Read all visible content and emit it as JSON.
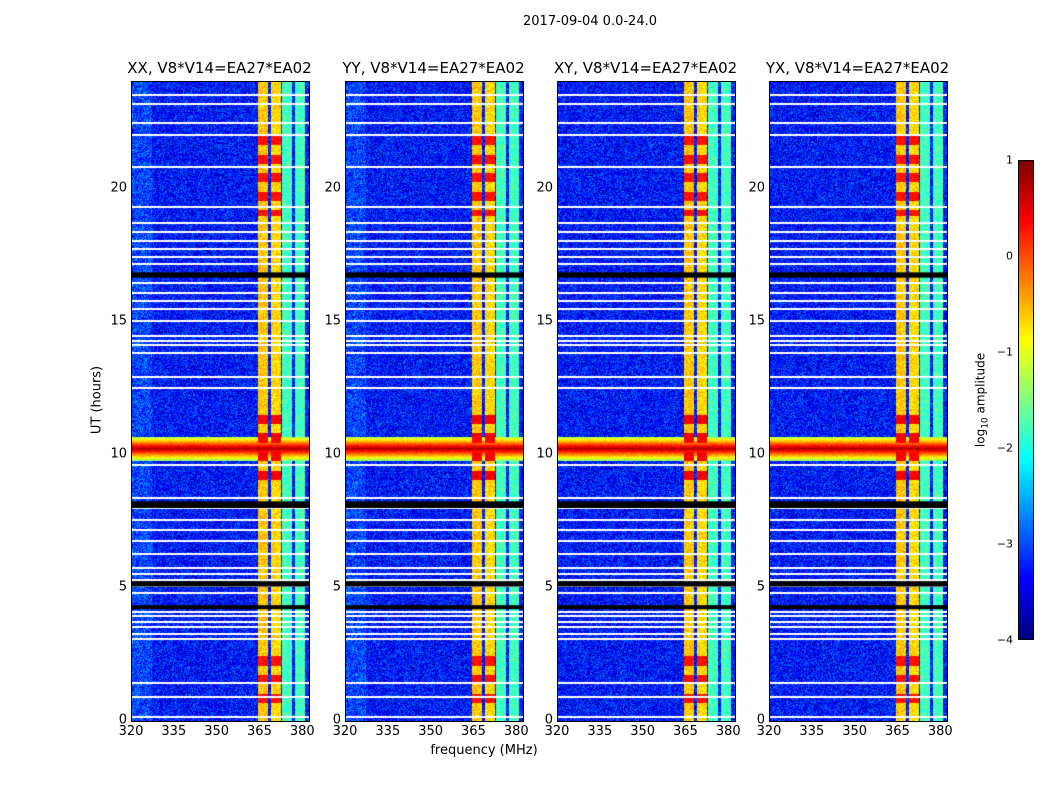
{
  "figure": {
    "suptitle": "2017-09-04 0.0-24.0",
    "xlabel": "frequency (MHz)",
    "ylabel": "UT (hours)"
  },
  "colorbar": {
    "label_prefix": "log",
    "label_sub": "10",
    "label_suffix": " amplitude",
    "ticks": [
      "1",
      "0",
      "−1",
      "−2",
      "−3",
      "−4"
    ],
    "range": [
      -4,
      1
    ],
    "colormap": "jet"
  },
  "chart_data": {
    "type": "heatmap",
    "x_range": [
      320,
      382
    ],
    "y_range": [
      0,
      24
    ],
    "x_ticks": [
      "320",
      "335",
      "350",
      "365",
      "380"
    ],
    "y_ticks": [
      "0",
      "5",
      "10",
      "15",
      "20"
    ],
    "panels": [
      {
        "title": "XX, V8*V14=EA27*EA02",
        "pol": "XX",
        "baseline": "V8*V14=EA27*EA02"
      },
      {
        "title": "YY, V8*V14=EA27*EA02",
        "pol": "YY",
        "baseline": "V8*V14=EA27*EA02"
      },
      {
        "title": "XY, V8*V14=EA27*EA02",
        "pol": "XY",
        "baseline": "V8*V14=EA27*EA02"
      },
      {
        "title": "YX, V8*V14=EA27*EA02",
        "pol": "YX",
        "baseline": "V8*V14=EA27*EA02"
      }
    ],
    "background_level": -3.3,
    "rfi_channels": [
      {
        "freq_range": [
          363.8,
          367.5
        ],
        "level": -0.6
      },
      {
        "freq_range": [
          368.5,
          372.0
        ],
        "level": -0.7
      },
      {
        "freq_range": [
          372.5,
          376.0
        ],
        "level": -1.8
      },
      {
        "freq_range": [
          377.0,
          380.5
        ],
        "level": -1.8
      }
    ],
    "strong_rfi_ut": [
      {
        "ut_range": [
          0.5,
          2.5
        ],
        "level": 0.3
      },
      {
        "ut_range": [
          8.8,
          11.5
        ],
        "level": 0.4
      },
      {
        "ut_range": [
          19.0,
          22.0
        ],
        "level": 0.3
      }
    ],
    "broadband_event": {
      "ut_range": [
        9.8,
        10.7
      ],
      "level": 0.8
    },
    "flagged_rows_ut": [
      0.2,
      0.95,
      1.45,
      3.1,
      3.3,
      3.55,
      3.75,
      4.0,
      4.15,
      4.3,
      4.85,
      5.1,
      5.35,
      5.55,
      5.8,
      6.3,
      6.8,
      7.2,
      7.6,
      8.05,
      8.2,
      8.4,
      9.65,
      12.55,
      12.95,
      13.85,
      14.15,
      14.3,
      14.5,
      15.05,
      15.5,
      15.8,
      16.1,
      16.5,
      16.75,
      17.2,
      17.45,
      17.75,
      18.05,
      18.4,
      18.75,
      19.35,
      20.85,
      22.05,
      22.5,
      23.2,
      23.55
    ]
  }
}
